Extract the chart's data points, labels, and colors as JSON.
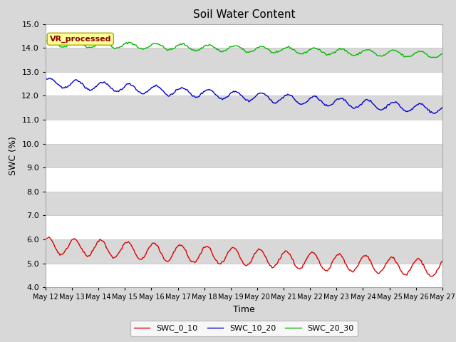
{
  "title": "Soil Water Content",
  "xlabel": "Time",
  "ylabel": "SWC (%)",
  "ylim": [
    4.0,
    15.0
  ],
  "yticks": [
    4.0,
    5.0,
    6.0,
    7.0,
    8.0,
    9.0,
    10.0,
    11.0,
    12.0,
    13.0,
    14.0,
    15.0
  ],
  "x_labels": [
    "May 12",
    "May 13",
    "May 14",
    "May 15",
    "May 16",
    "May 17",
    "May 18",
    "May 19",
    "May 20",
    "May 21",
    "May 22",
    "May 23",
    "May 24",
    "May 25",
    "May 26",
    "May 27"
  ],
  "legend_label": "VR_processed",
  "series_labels": [
    "SWC_0_10",
    "SWC_10_20",
    "SWC_20_30"
  ],
  "series_colors": [
    "#dd0000",
    "#0000cc",
    "#00bb00"
  ],
  "background_color": "#d8d8d8",
  "plot_bg_color": "#d8d8d8",
  "grid_color": "#ffffff",
  "title_fontsize": 11,
  "axis_fontsize": 9,
  "tick_fontsize": 8,
  "legend_box_facecolor": "#ffff99",
  "legend_box_edgecolor": "#aaa800",
  "legend_text_color": "#880000",
  "n_points": 360
}
